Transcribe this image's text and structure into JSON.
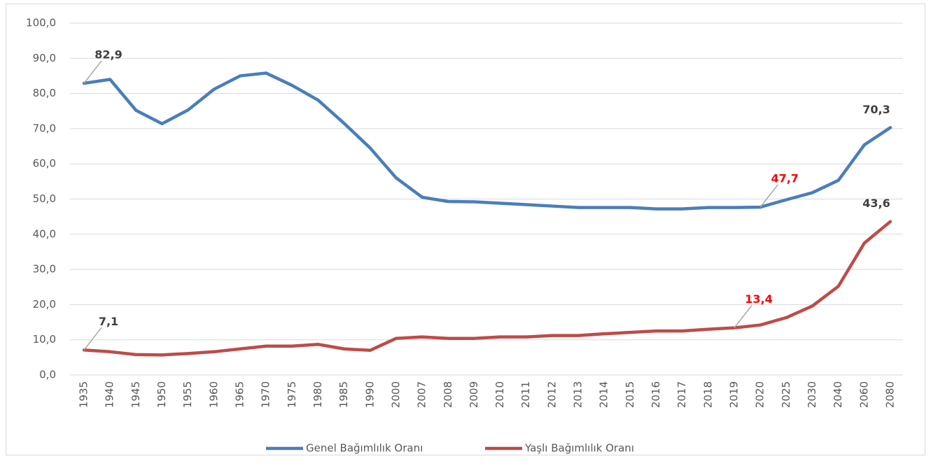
{
  "chart_data": {
    "type": "line",
    "categories": [
      "1935",
      "1940",
      "1945",
      "1950",
      "1955",
      "1960",
      "1965",
      "1970",
      "1975",
      "1980",
      "1985",
      "1990",
      "2000",
      "2007",
      "2008",
      "2009",
      "2010",
      "2011",
      "2012",
      "2013",
      "2014",
      "2015",
      "2016",
      "2017",
      "2018",
      "2019",
      "2020",
      "2025",
      "2030",
      "2040",
      "2060",
      "2080"
    ],
    "series": [
      {
        "name": "Genel Bağımlılık Oranı",
        "color": "#4a7ebb",
        "values": [
          82.9,
          84.0,
          75.2,
          71.4,
          75.3,
          81.2,
          85.0,
          85.8,
          82.3,
          78.1,
          71.5,
          64.5,
          56.0,
          50.5,
          49.3,
          49.2,
          48.8,
          48.4,
          48.0,
          47.6,
          47.6,
          47.6,
          47.2,
          47.2,
          47.6,
          47.6,
          47.7,
          49.8,
          51.8,
          55.3,
          65.4,
          70.3
        ],
        "value_labels": [
          "82,9",
          null,
          null,
          null,
          null,
          null,
          null,
          null,
          null,
          null,
          null,
          null,
          null,
          null,
          null,
          null,
          null,
          null,
          null,
          null,
          null,
          null,
          null,
          null,
          null,
          null,
          "47,7",
          null,
          null,
          null,
          null,
          "70,3"
        ],
        "value_label_colors": [
          "#404040",
          null,
          null,
          null,
          null,
          null,
          null,
          null,
          null,
          null,
          null,
          null,
          null,
          null,
          null,
          null,
          null,
          null,
          null,
          null,
          null,
          null,
          null,
          null,
          null,
          null,
          "#ff0000",
          null,
          null,
          null,
          null,
          "#404040"
        ]
      },
      {
        "name": "Yaşlı Bağımlılık Oranı",
        "color": "#be4b48",
        "values": [
          7.1,
          6.6,
          5.8,
          5.7,
          6.1,
          6.6,
          7.4,
          8.2,
          8.2,
          8.7,
          7.4,
          7.0,
          10.4,
          10.8,
          10.4,
          10.4,
          10.8,
          10.8,
          11.2,
          11.2,
          11.7,
          12.1,
          12.5,
          12.5,
          13.0,
          13.4,
          14.2,
          16.3,
          19.6,
          25.2,
          37.5,
          43.6
        ],
        "value_labels": [
          "7,1",
          null,
          null,
          null,
          null,
          null,
          null,
          null,
          null,
          null,
          null,
          null,
          null,
          null,
          null,
          null,
          null,
          null,
          null,
          null,
          null,
          null,
          null,
          null,
          null,
          "13,4",
          null,
          null,
          null,
          null,
          null,
          "43,6"
        ],
        "value_label_colors": [
          "#404040",
          null,
          null,
          null,
          null,
          null,
          null,
          null,
          null,
          null,
          null,
          null,
          null,
          null,
          null,
          null,
          null,
          null,
          null,
          null,
          null,
          null,
          null,
          null,
          null,
          "#ff0000",
          null,
          null,
          null,
          null,
          null,
          "#404040"
        ]
      }
    ],
    "ylim": [
      0,
      100
    ],
    "yticks": [
      {
        "value": 0,
        "label": "0,0"
      },
      {
        "value": 10,
        "label": "10,0"
      },
      {
        "value": 20,
        "label": "20,0"
      },
      {
        "value": 30,
        "label": "30,0"
      },
      {
        "value": 40,
        "label": "40,0"
      },
      {
        "value": 50,
        "label": "50,0"
      },
      {
        "value": 60,
        "label": "60,0"
      },
      {
        "value": 70,
        "label": "70,0"
      },
      {
        "value": 80,
        "label": "80,0"
      },
      {
        "value": 90,
        "label": "90,0"
      },
      {
        "value": 100,
        "label": "100,0"
      }
    ],
    "grid": true,
    "legend": "bottom"
  }
}
